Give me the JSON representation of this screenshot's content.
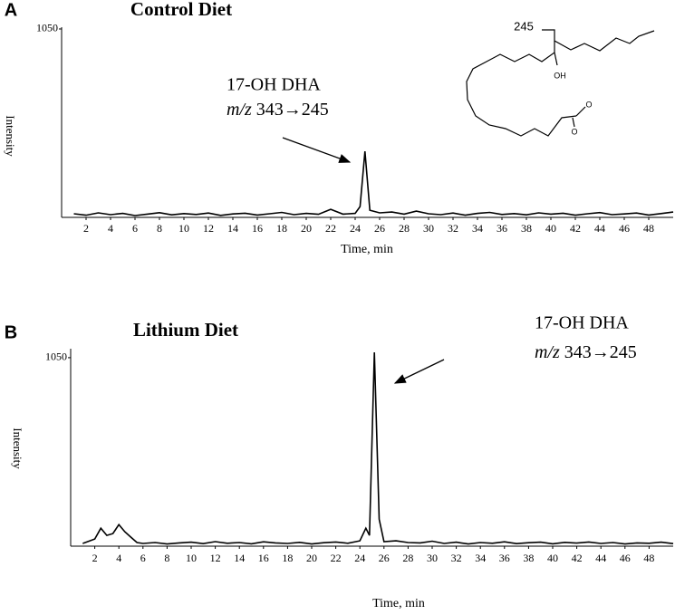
{
  "chart_data": [
    {
      "type": "line",
      "panel_label": "A",
      "title": "Control Diet",
      "xlabel": "Time, min",
      "ylabel": "Intensity",
      "annotation_label": "17-OH DHA",
      "annotation_mz": "m/z",
      "annotation_transition": "343→245",
      "structure": {
        "cleavage_label": "245",
        "hydroxyl": "OH",
        "carboxylate": "O"
      },
      "color": "#000000",
      "xlim": [
        0,
        50
      ],
      "xticks": [
        2,
        4,
        6,
        8,
        10,
        12,
        14,
        16,
        18,
        20,
        22,
        24,
        26,
        28,
        30,
        32,
        34,
        36,
        38,
        40,
        42,
        44,
        46,
        48
      ],
      "ylim": [
        0,
        1060
      ],
      "yticks": [
        1050
      ],
      "x": [
        1,
        2,
        3,
        4,
        5,
        6,
        7,
        8,
        9,
        10,
        11,
        12,
        13,
        14,
        15,
        16,
        17,
        18,
        19,
        20,
        21,
        22,
        23,
        24,
        24.4,
        24.8,
        25.2,
        26,
        27,
        28,
        29,
        30,
        31,
        32,
        33,
        34,
        35,
        36,
        37,
        38,
        39,
        40,
        41,
        42,
        43,
        44,
        45,
        46,
        47,
        48,
        49,
        50
      ],
      "values": [
        20,
        12,
        25,
        15,
        22,
        10,
        18,
        26,
        14,
        21,
        16,
        24,
        11,
        19,
        23,
        13,
        20,
        28,
        15,
        22,
        17,
        45,
        18,
        22,
        60,
        368,
        40,
        25,
        30,
        18,
        35,
        20,
        15,
        24,
        12,
        22,
        28,
        16,
        21,
        14,
        25,
        18,
        23,
        12,
        20,
        27,
        15,
        19,
        24,
        13,
        21,
        30
      ]
    },
    {
      "type": "line",
      "panel_label": "B",
      "title": "Lithium Diet",
      "xlabel": "Time, min",
      "ylabel": "Intensity",
      "annotation_label": "17-OH DHA",
      "annotation_mz": "m/z",
      "annotation_transition": "343→245",
      "color": "#000000",
      "xlim": [
        0,
        50
      ],
      "xticks": [
        2,
        4,
        6,
        8,
        10,
        12,
        14,
        16,
        18,
        20,
        22,
        24,
        26,
        28,
        30,
        32,
        34,
        36,
        38,
        40,
        42,
        44,
        46,
        48
      ],
      "ylim": [
        0,
        1100
      ],
      "yticks": [
        1050
      ],
      "x": [
        1,
        2,
        2.5,
        3,
        3.5,
        4,
        4.5,
        5,
        5.5,
        6,
        7,
        8,
        9,
        10,
        11,
        12,
        13,
        14,
        15,
        16,
        17,
        18,
        19,
        20,
        21,
        22,
        23,
        24,
        24.5,
        24.8,
        25.2,
        25.6,
        26,
        27,
        28,
        29,
        30,
        31,
        32,
        33,
        34,
        35,
        36,
        37,
        38,
        39,
        40,
        41,
        42,
        43,
        44,
        45,
        46,
        47,
        48,
        49,
        50
      ],
      "values": [
        15,
        40,
        100,
        60,
        70,
        120,
        80,
        50,
        20,
        15,
        20,
        12,
        18,
        22,
        14,
        25,
        16,
        20,
        13,
        24,
        18,
        15,
        21,
        12,
        19,
        23,
        16,
        30,
        100,
        60,
        1080,
        150,
        25,
        30,
        20,
        18,
        28,
        15,
        22,
        12,
        20,
        16,
        24,
        14,
        19,
        22,
        13,
        21,
        17,
        23,
        15,
        20,
        12,
        18,
        16,
        22,
        14
      ]
    }
  ]
}
